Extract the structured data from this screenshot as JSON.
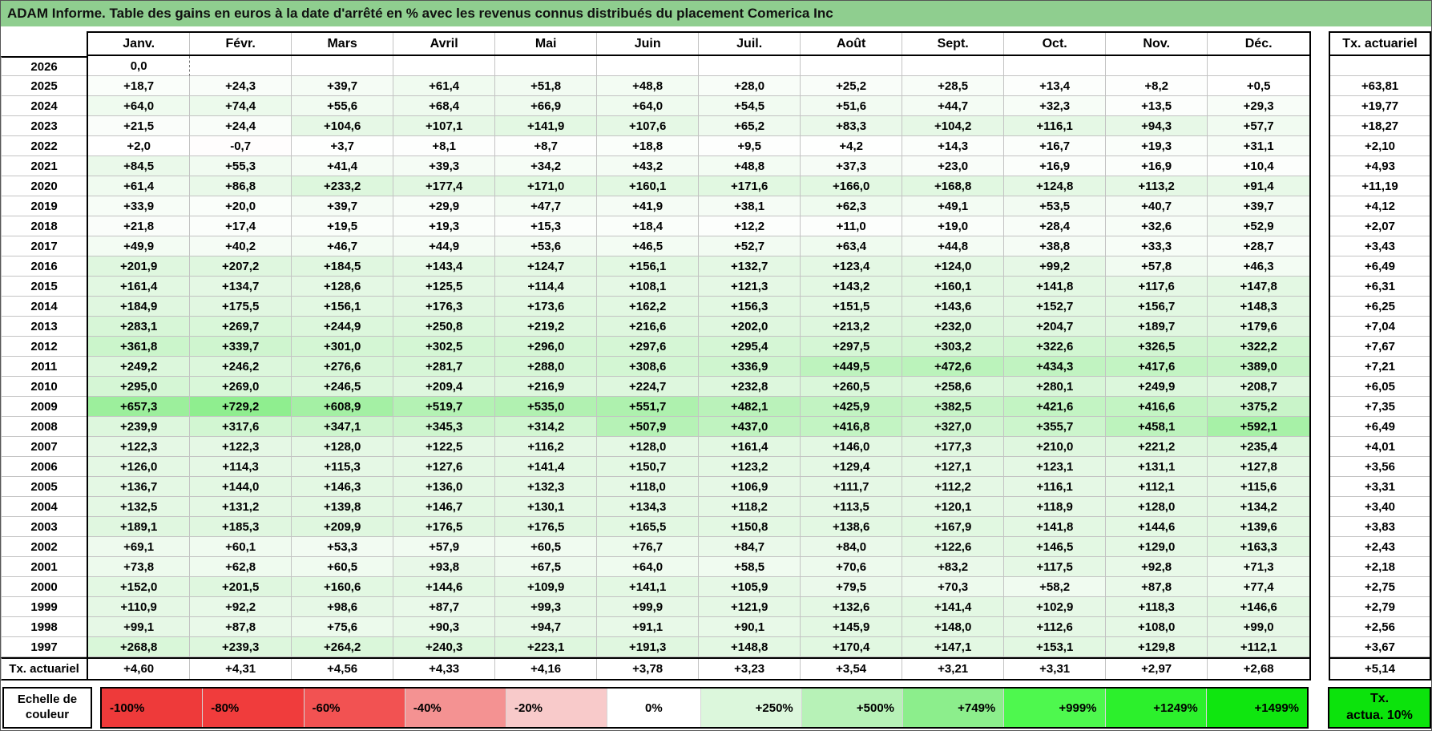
{
  "title": "ADAM Informe. Table des gains en euros à la date d'arrêté en % avec les revenus connus distribués du placement Comerica Inc",
  "colors": {
    "title_bg": "#8fce8f",
    "grid_line": "#c3c3c3",
    "thick_line": "#000000",
    "tx_box_bg": "#0ce30c",
    "neg_anchors": [
      [
        0,
        "#ffffff"
      ],
      [
        20,
        "#f8caca"
      ],
      [
        40,
        "#f49292"
      ],
      [
        60,
        "#f25252"
      ],
      [
        80,
        "#f03c3c"
      ],
      [
        100,
        "#ee3a3a"
      ]
    ],
    "pos_anchors": [
      [
        0,
        "#ffffff"
      ],
      [
        100,
        "#e6f8e6"
      ],
      [
        250,
        "#dcf7dc"
      ],
      [
        500,
        "#b7f2b7"
      ],
      [
        749,
        "#8cee8c"
      ],
      [
        999,
        "#4ef84e"
      ],
      [
        1249,
        "#2cf02c"
      ],
      [
        1499,
        "#0fe60f"
      ]
    ]
  },
  "table": {
    "month_headers": [
      "Janv.",
      "Févr.",
      "Mars",
      "Avril",
      "Mai",
      "Juin",
      "Juil.",
      "Août",
      "Sept.",
      "Oct.",
      "Nov.",
      "Déc."
    ],
    "tx_header": "Tx. actuariel",
    "rows": [
      {
        "year": "2026",
        "values": [
          "0,0",
          "",
          "",
          "",
          "",
          "",
          "",
          "",
          "",
          "",
          "",
          ""
        ],
        "tx": ""
      },
      {
        "year": "2025",
        "values": [
          "+18,7",
          "+24,3",
          "+39,7",
          "+61,4",
          "+51,8",
          "+48,8",
          "+28,0",
          "+25,2",
          "+28,5",
          "+13,4",
          "+8,2",
          "+0,5"
        ],
        "tx": "+63,81"
      },
      {
        "year": "2024",
        "values": [
          "+64,0",
          "+74,4",
          "+55,6",
          "+68,4",
          "+66,9",
          "+64,0",
          "+54,5",
          "+51,6",
          "+44,7",
          "+32,3",
          "+13,5",
          "+29,3"
        ],
        "tx": "+19,77"
      },
      {
        "year": "2023",
        "values": [
          "+21,5",
          "+24,4",
          "+104,6",
          "+107,1",
          "+141,9",
          "+107,6",
          "+65,2",
          "+83,3",
          "+104,2",
          "+116,1",
          "+94,3",
          "+57,7"
        ],
        "tx": "+18,27"
      },
      {
        "year": "2022",
        "values": [
          "+2,0",
          "-0,7",
          "+3,7",
          "+8,1",
          "+8,7",
          "+18,8",
          "+9,5",
          "+4,2",
          "+14,3",
          "+16,7",
          "+19,3",
          "+31,1"
        ],
        "tx": "+2,10"
      },
      {
        "year": "2021",
        "values": [
          "+84,5",
          "+55,3",
          "+41,4",
          "+39,3",
          "+34,2",
          "+43,2",
          "+48,8",
          "+37,3",
          "+23,0",
          "+16,9",
          "+16,9",
          "+10,4"
        ],
        "tx": "+4,93"
      },
      {
        "year": "2020",
        "values": [
          "+61,4",
          "+86,8",
          "+233,2",
          "+177,4",
          "+171,0",
          "+160,1",
          "+171,6",
          "+166,0",
          "+168,8",
          "+124,8",
          "+113,2",
          "+91,4"
        ],
        "tx": "+11,19"
      },
      {
        "year": "2019",
        "values": [
          "+33,9",
          "+20,0",
          "+39,7",
          "+29,9",
          "+47,7",
          "+41,9",
          "+38,1",
          "+62,3",
          "+49,1",
          "+53,5",
          "+40,7",
          "+39,7"
        ],
        "tx": "+4,12"
      },
      {
        "year": "2018",
        "values": [
          "+21,8",
          "+17,4",
          "+19,5",
          "+19,3",
          "+15,3",
          "+18,4",
          "+12,2",
          "+11,0",
          "+19,0",
          "+28,4",
          "+32,6",
          "+52,9"
        ],
        "tx": "+2,07"
      },
      {
        "year": "2017",
        "values": [
          "+49,9",
          "+40,2",
          "+46,7",
          "+44,9",
          "+53,6",
          "+46,5",
          "+52,7",
          "+63,4",
          "+44,8",
          "+38,8",
          "+33,3",
          "+28,7"
        ],
        "tx": "+3,43"
      },
      {
        "year": "2016",
        "values": [
          "+201,9",
          "+207,2",
          "+184,5",
          "+143,4",
          "+124,7",
          "+156,1",
          "+132,7",
          "+123,4",
          "+124,0",
          "+99,2",
          "+57,8",
          "+46,3"
        ],
        "tx": "+6,49"
      },
      {
        "year": "2015",
        "values": [
          "+161,4",
          "+134,7",
          "+128,6",
          "+125,5",
          "+114,4",
          "+108,1",
          "+121,3",
          "+143,2",
          "+160,1",
          "+141,8",
          "+117,6",
          "+147,8"
        ],
        "tx": "+6,31"
      },
      {
        "year": "2014",
        "values": [
          "+184,9",
          "+175,5",
          "+156,1",
          "+176,3",
          "+173,6",
          "+162,2",
          "+156,3",
          "+151,5",
          "+143,6",
          "+152,7",
          "+156,7",
          "+148,3"
        ],
        "tx": "+6,25"
      },
      {
        "year": "2013",
        "values": [
          "+283,1",
          "+269,7",
          "+244,9",
          "+250,8",
          "+219,2",
          "+216,6",
          "+202,0",
          "+213,2",
          "+232,0",
          "+204,7",
          "+189,7",
          "+179,6"
        ],
        "tx": "+7,04"
      },
      {
        "year": "2012",
        "values": [
          "+361,8",
          "+339,7",
          "+301,0",
          "+302,5",
          "+296,0",
          "+297,6",
          "+295,4",
          "+297,5",
          "+303,2",
          "+322,6",
          "+326,5",
          "+322,2"
        ],
        "tx": "+7,67"
      },
      {
        "year": "2011",
        "values": [
          "+249,2",
          "+246,2",
          "+276,6",
          "+281,7",
          "+288,0",
          "+308,6",
          "+336,9",
          "+449,5",
          "+472,6",
          "+434,3",
          "+417,6",
          "+389,0"
        ],
        "tx": "+7,21"
      },
      {
        "year": "2010",
        "values": [
          "+295,0",
          "+269,0",
          "+246,5",
          "+209,4",
          "+216,9",
          "+224,7",
          "+232,8",
          "+260,5",
          "+258,6",
          "+280,1",
          "+249,9",
          "+208,7"
        ],
        "tx": "+6,05"
      },
      {
        "year": "2009",
        "values": [
          "+657,3",
          "+729,2",
          "+608,9",
          "+519,7",
          "+535,0",
          "+551,7",
          "+482,1",
          "+425,9",
          "+382,5",
          "+421,6",
          "+416,6",
          "+375,2"
        ],
        "tx": "+7,35"
      },
      {
        "year": "2008",
        "values": [
          "+239,9",
          "+317,6",
          "+347,1",
          "+345,3",
          "+314,2",
          "+507,9",
          "+437,0",
          "+416,8",
          "+327,0",
          "+355,7",
          "+458,1",
          "+592,1"
        ],
        "tx": "+6,49"
      },
      {
        "year": "2007",
        "values": [
          "+122,3",
          "+122,3",
          "+128,0",
          "+122,5",
          "+116,2",
          "+128,0",
          "+161,4",
          "+146,0",
          "+177,3",
          "+210,0",
          "+221,2",
          "+235,4"
        ],
        "tx": "+4,01"
      },
      {
        "year": "2006",
        "values": [
          "+126,0",
          "+114,3",
          "+115,3",
          "+127,6",
          "+141,4",
          "+150,7",
          "+123,2",
          "+129,4",
          "+127,1",
          "+123,1",
          "+131,1",
          "+127,8"
        ],
        "tx": "+3,56"
      },
      {
        "year": "2005",
        "values": [
          "+136,7",
          "+144,0",
          "+146,3",
          "+136,0",
          "+132,3",
          "+118,0",
          "+106,9",
          "+111,7",
          "+112,2",
          "+116,1",
          "+112,1",
          "+115,6"
        ],
        "tx": "+3,31"
      },
      {
        "year": "2004",
        "values": [
          "+132,5",
          "+131,2",
          "+139,8",
          "+146,7",
          "+130,1",
          "+134,3",
          "+118,2",
          "+113,5",
          "+120,1",
          "+118,9",
          "+128,0",
          "+134,2"
        ],
        "tx": "+3,40"
      },
      {
        "year": "2003",
        "values": [
          "+189,1",
          "+185,3",
          "+209,9",
          "+176,5",
          "+176,5",
          "+165,5",
          "+150,8",
          "+138,6",
          "+167,9",
          "+141,8",
          "+144,6",
          "+139,6"
        ],
        "tx": "+3,83"
      },
      {
        "year": "2002",
        "values": [
          "+69,1",
          "+60,1",
          "+53,3",
          "+57,9",
          "+60,5",
          "+76,7",
          "+84,7",
          "+84,0",
          "+122,6",
          "+146,5",
          "+129,0",
          "+163,3"
        ],
        "tx": "+2,43"
      },
      {
        "year": "2001",
        "values": [
          "+73,8",
          "+62,8",
          "+60,5",
          "+93,8",
          "+67,5",
          "+64,0",
          "+58,5",
          "+70,6",
          "+83,2",
          "+117,5",
          "+92,8",
          "+71,3"
        ],
        "tx": "+2,18"
      },
      {
        "year": "2000",
        "values": [
          "+152,0",
          "+201,5",
          "+160,6",
          "+144,6",
          "+109,9",
          "+141,1",
          "+105,9",
          "+79,5",
          "+70,3",
          "+58,2",
          "+87,8",
          "+77,4"
        ],
        "tx": "+2,75"
      },
      {
        "year": "1999",
        "values": [
          "+110,9",
          "+92,2",
          "+98,6",
          "+87,7",
          "+99,3",
          "+99,9",
          "+121,9",
          "+132,6",
          "+141,4",
          "+102,9",
          "+118,3",
          "+146,6"
        ],
        "tx": "+2,79"
      },
      {
        "year": "1998",
        "values": [
          "+99,1",
          "+87,8",
          "+75,6",
          "+90,3",
          "+94,7",
          "+91,1",
          "+90,1",
          "+145,9",
          "+148,0",
          "+112,6",
          "+108,0",
          "+99,0"
        ],
        "tx": "+2,56"
      },
      {
        "year": "1997",
        "values": [
          "+268,8",
          "+239,3",
          "+264,2",
          "+240,3",
          "+223,1",
          "+191,3",
          "+148,8",
          "+170,4",
          "+147,1",
          "+153,1",
          "+129,8",
          "+112,1"
        ],
        "tx": "+3,67"
      }
    ],
    "footer": {
      "label": "Tx. actuariel",
      "values": [
        "+4,60",
        "+4,31",
        "+4,56",
        "+4,33",
        "+4,16",
        "+3,78",
        "+3,23",
        "+3,54",
        "+3,21",
        "+3,31",
        "+2,97",
        "+2,68"
      ],
      "tx": "+5,14"
    }
  },
  "color_scale": {
    "label": "Echelle de couleur",
    "stops": [
      {
        "label": "-100%",
        "value": -100
      },
      {
        "label": "-80%",
        "value": -80
      },
      {
        "label": "-60%",
        "value": -60
      },
      {
        "label": "-40%",
        "value": -40
      },
      {
        "label": "-20%",
        "value": -20
      },
      {
        "label": "0%",
        "value": 0
      },
      {
        "label": "+250%",
        "value": 250
      },
      {
        "label": "+500%",
        "value": 500
      },
      {
        "label": "+749%",
        "value": 749
      },
      {
        "label": "+999%",
        "value": 999
      },
      {
        "label": "+1249%",
        "value": 1249
      },
      {
        "label": "+1499%",
        "value": 1499
      }
    ],
    "tx_box_line1": "Tx.",
    "tx_box_line2": "actua. 10%"
  }
}
